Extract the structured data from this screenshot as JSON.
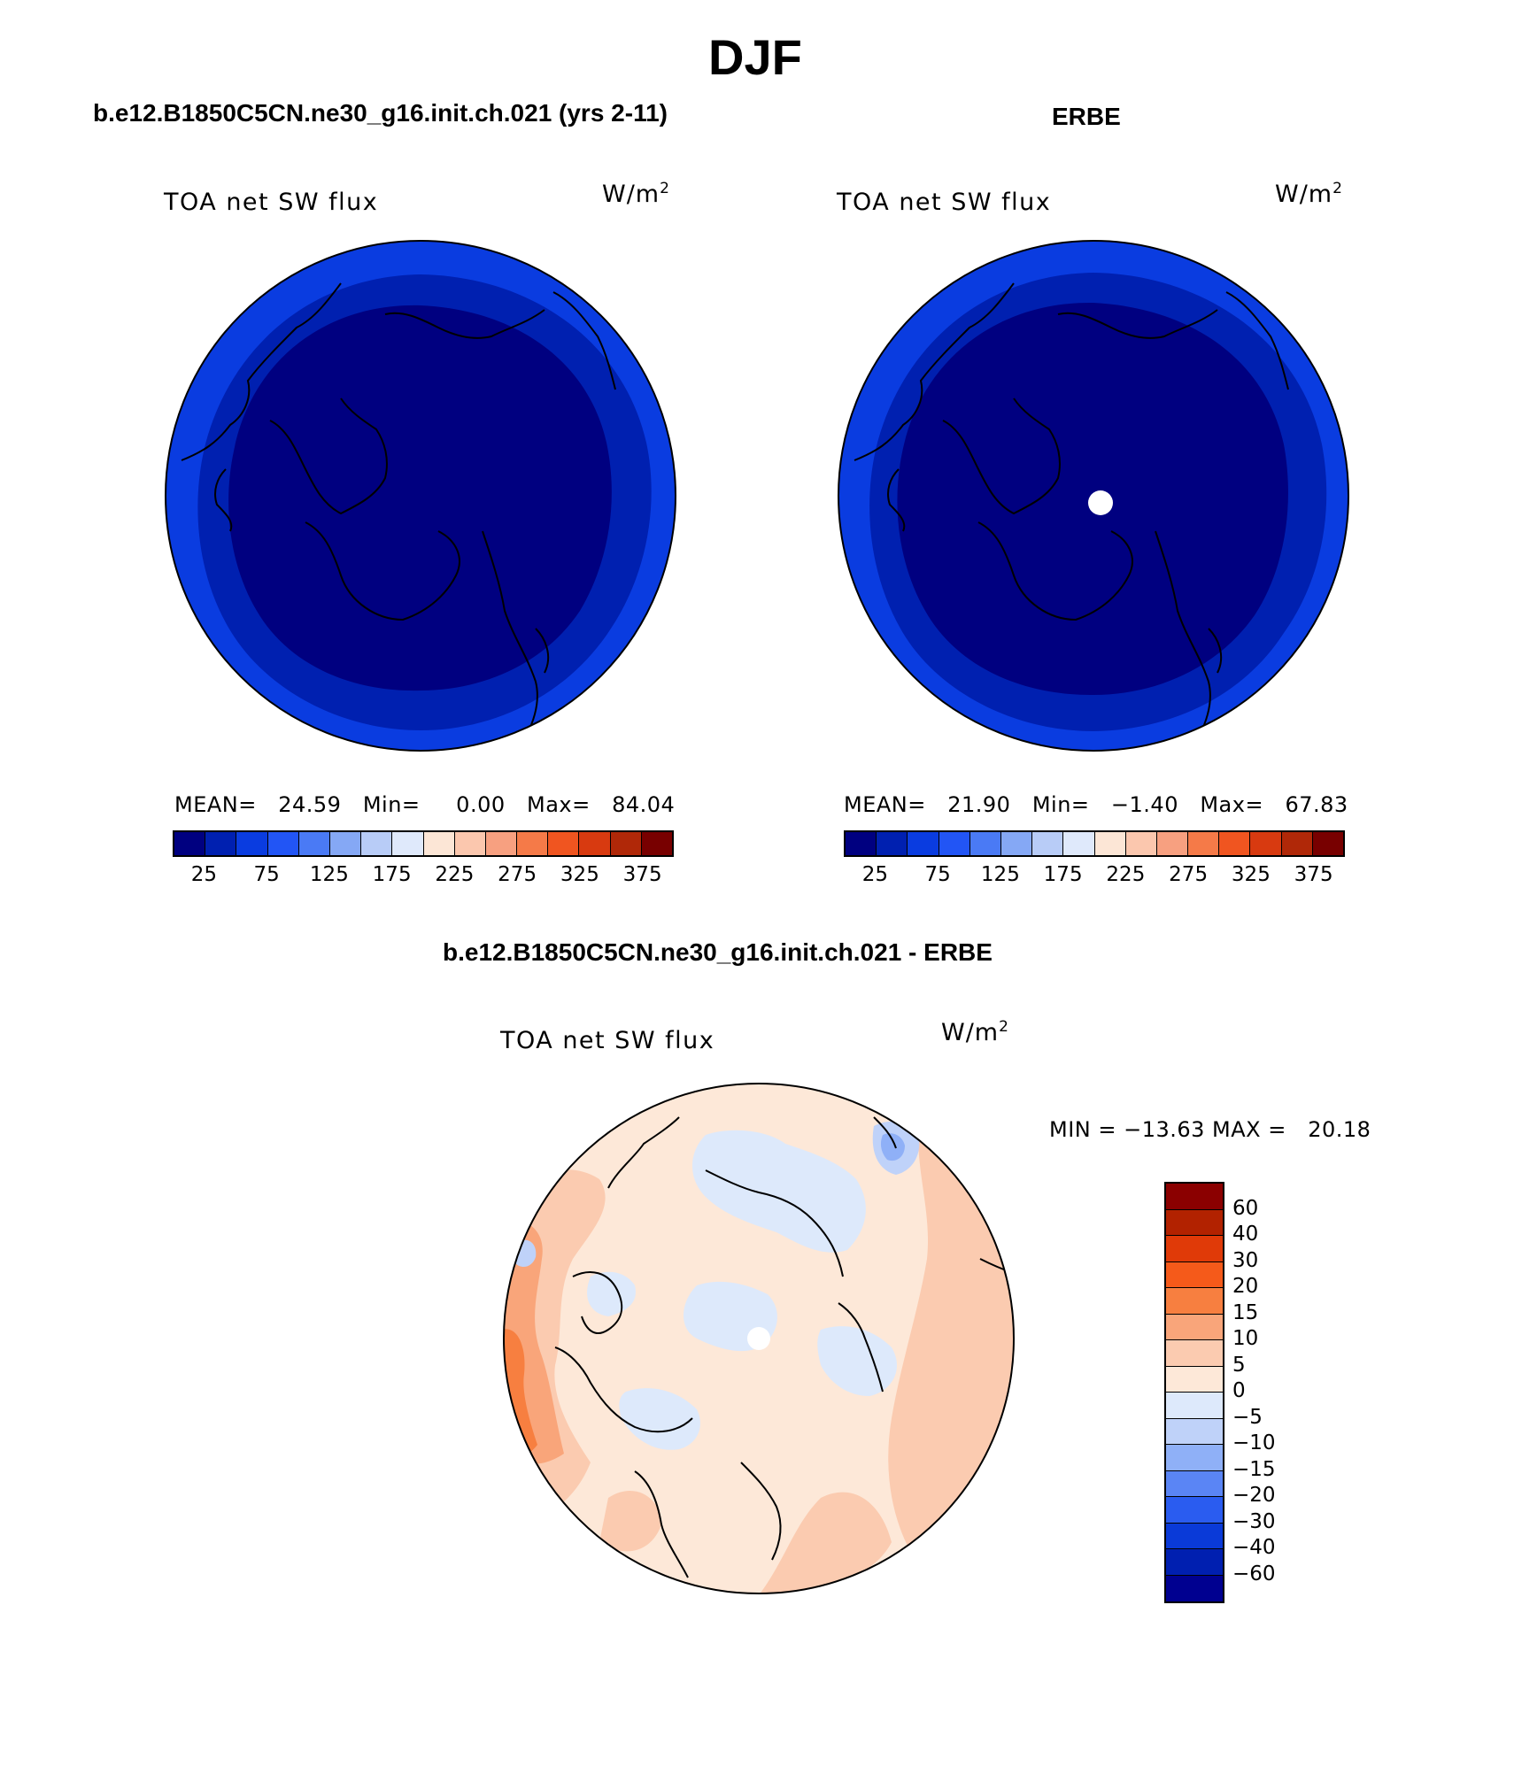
{
  "figure": {
    "season": "DJF",
    "case_title": "b.e12.B1850C5CN.ne30_g16.init.ch.021 (yrs 2-11)",
    "obs_title": "ERBE",
    "diff_title": "b.e12.B1850C5CN.ne30_g16.init.ch.021 - ERBE"
  },
  "panels": {
    "model": {
      "label": "TOA net SW flux",
      "units": "W/m",
      "units_sup": "2",
      "stats": "MEAN=   24.59   Min=     0.00   Max=   84.04"
    },
    "obs": {
      "label": "TOA net SW flux",
      "units": "W/m",
      "units_sup": "2",
      "stats": "MEAN=   21.90   Min=   −1.40   Max=   67.83"
    },
    "diff": {
      "label": "TOA net SW flux",
      "units": "W/m",
      "units_sup": "2",
      "stats": "MIN = −13.63 MAX =   20.18"
    }
  },
  "colorbars": {
    "abs": {
      "colors": [
        "#000080",
        "#0020b0",
        "#0a3ce0",
        "#2255f5",
        "#4a7af5",
        "#85a8f5",
        "#b8ccf7",
        "#dfe9fb",
        "#fce6d6",
        "#fbc7ae",
        "#f7a080",
        "#f57a48",
        "#f05520",
        "#d83a10",
        "#b02808",
        "#780000"
      ],
      "tick_labels": [
        "25",
        "75",
        "125",
        "175",
        "225",
        "275",
        "325",
        "375"
      ]
    },
    "diff": {
      "colors": [
        "#8b0000",
        "#b22200",
        "#e03a08",
        "#f55a1a",
        "#f77f40",
        "#f9a57a",
        "#fbcbb0",
        "#fde8d8",
        "#dde9fb",
        "#bfd2f9",
        "#8fb0f7",
        "#5a85f5",
        "#2a5cf0",
        "#0a3ad8",
        "#001fb0",
        "#000090"
      ],
      "tick_labels": [
        "60",
        "40",
        "30",
        "20",
        "15",
        "10",
        "5",
        "0",
        "−5",
        "−10",
        "−15",
        "−20",
        "−30",
        "−40",
        "−60"
      ]
    }
  },
  "maps": {
    "model_colors": {
      "outer": "#0a3ce0",
      "mid": "#0020b0",
      "inner": "#000080"
    },
    "diff_colors": {
      "base": "#fde8d8",
      "pos1": "#fbcbb0",
      "pos2": "#f9a57a",
      "pos3": "#f77f40",
      "neg1": "#dde9fb",
      "neg2": "#bfd2f9",
      "neg3": "#8fb0f7"
    }
  }
}
